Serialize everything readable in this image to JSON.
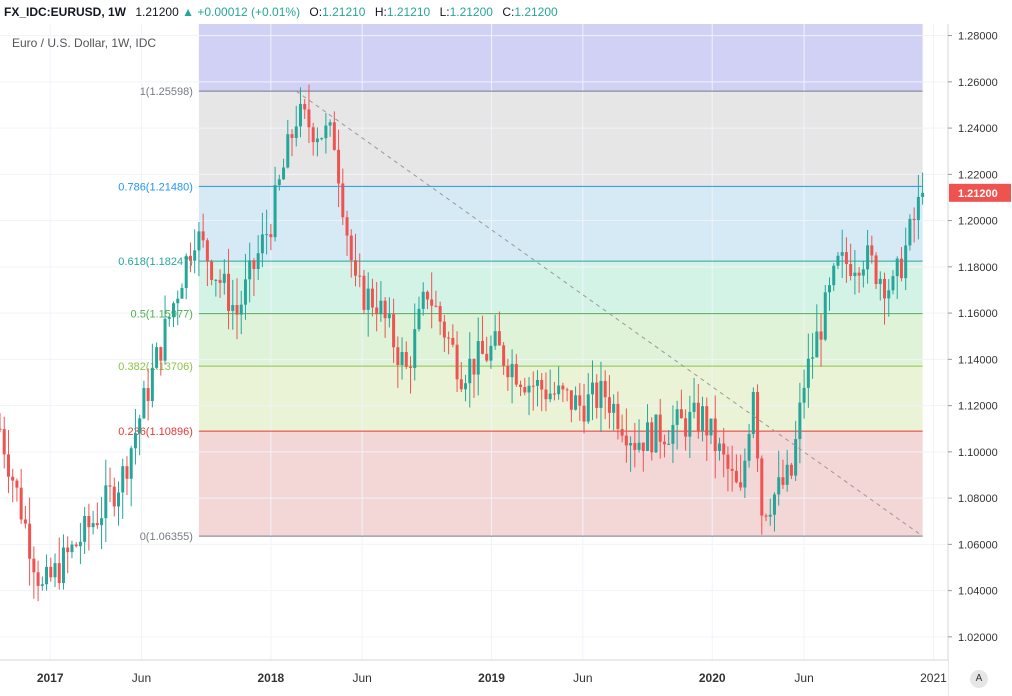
{
  "header": {
    "symbol": "FX_IDC:EURUSD, 1W",
    "last": "1.21200",
    "change_arrow": "▲",
    "change": "+0.00012 (+0.01%)",
    "o_label": "O:",
    "o_value": "1.21210",
    "h_label": "H:",
    "h_value": "1.21210",
    "l_label": "L:",
    "l_value": "1.21200",
    "c_label": "C:",
    "c_value": "1.21200"
  },
  "subtitle": "Euro / U.S. Dollar, 1W, IDC",
  "auto_button": "A",
  "colors": {
    "up": "#26a69a",
    "down": "#ef5350",
    "price_tag": "#ef5350"
  },
  "chart_data": {
    "type": "candlestick",
    "y_range": [
      1.01,
      1.285
    ],
    "y_ticks": [
      "1.28000",
      "1.26000",
      "1.24000",
      "1.22000",
      "1.20000",
      "1.18000",
      "1.16000",
      "1.14000",
      "1.12000",
      "1.10000",
      "1.08000",
      "1.06000",
      "1.04000",
      "1.02000"
    ],
    "y_tick_values": [
      1.28,
      1.26,
      1.24,
      1.22,
      1.2,
      1.18,
      1.16,
      1.14,
      1.12,
      1.1,
      1.08,
      1.06,
      1.04,
      1.02
    ],
    "x_range": [
      "2016-10-10",
      "2021-01-25"
    ],
    "x_ticks": [
      {
        "label": "2017",
        "date": "2017-01-01",
        "bold": true
      },
      {
        "label": "Jun",
        "date": "2017-06-01",
        "bold": false
      },
      {
        "label": "2018",
        "date": "2018-01-01",
        "bold": true
      },
      {
        "label": "Jun",
        "date": "2018-06-01",
        "bold": false
      },
      {
        "label": "2019",
        "date": "2019-01-01",
        "bold": true
      },
      {
        "label": "Jun",
        "date": "2019-06-01",
        "bold": false
      },
      {
        "label": "2020",
        "date": "2020-01-01",
        "bold": true
      },
      {
        "label": "Jun",
        "date": "2020-06-01",
        "bold": false
      },
      {
        "label": "2021",
        "date": "2021-01-01",
        "bold": false
      }
    ],
    "last_price": "1.21200",
    "last_price_value": 1.212,
    "fib_start_date": "2017-09-04",
    "fib_end_date": "2020-12-14",
    "trend_line": {
      "from_date": "2018-02-12",
      "from_value": 1.25598,
      "to_date": "2020-12-14",
      "to_value": 1.06355
    },
    "fib_levels": [
      {
        "label": "1(1.25598)",
        "value": 1.25598,
        "line": "#787b86"
      },
      {
        "label": "0.786(1.21480)",
        "value": 1.2148,
        "line": "#2196f3"
      },
      {
        "label": "0.618(1.18247)",
        "value": 1.18247,
        "line": "#26a69a"
      },
      {
        "label": "0.5(1.15977)",
        "value": 1.15977,
        "line": "#4caf50"
      },
      {
        "label": "0.382(1.13706)",
        "value": 1.13706,
        "line": "#8bc34a"
      },
      {
        "label": "0.236(1.10896)",
        "value": 1.10896,
        "line": "#e53935"
      },
      {
        "label": "0(1.06355)",
        "value": 1.06355,
        "line": "#787b86"
      }
    ],
    "fib_bands": [
      {
        "from": 1.25598,
        "to": 1.285,
        "color": "#d1d0f5"
      },
      {
        "from": 1.2148,
        "to": 1.25598,
        "color": "#e6e6e6"
      },
      {
        "from": 1.18247,
        "to": 1.2148,
        "color": "#d6eaf5"
      },
      {
        "from": 1.15977,
        "to": 1.18247,
        "color": "#d4f3e7"
      },
      {
        "from": 1.13706,
        "to": 1.15977,
        "color": "#dff3d8"
      },
      {
        "from": 1.10896,
        "to": 1.13706,
        "color": "#ebf3d6"
      },
      {
        "from": 1.06355,
        "to": 1.10896,
        "color": "#f3d6d6"
      }
    ],
    "anchors": [
      [
        "2016-10-10",
        1.11
      ],
      [
        "2016-12-19",
        1.04
      ],
      [
        "2017-01-02",
        1.045
      ],
      [
        "2017-03-27",
        1.075
      ],
      [
        "2017-05-01",
        1.09
      ],
      [
        "2017-06-26",
        1.14
      ],
      [
        "2017-08-28",
        1.195
      ],
      [
        "2017-11-06",
        1.16
      ],
      [
        "2018-01-01",
        1.2
      ],
      [
        "2018-02-12",
        1.245
      ],
      [
        "2018-04-16",
        1.235
      ],
      [
        "2018-05-21",
        1.17
      ],
      [
        "2018-06-25",
        1.165
      ],
      [
        "2018-08-13",
        1.135
      ],
      [
        "2018-09-17",
        1.17
      ],
      [
        "2018-11-12",
        1.135
      ],
      [
        "2019-01-07",
        1.145
      ],
      [
        "2019-03-04",
        1.13
      ],
      [
        "2019-05-27",
        1.12
      ],
      [
        "2019-07-08",
        1.125
      ],
      [
        "2019-08-26",
        1.105
      ],
      [
        "2019-10-21",
        1.11
      ],
      [
        "2019-12-16",
        1.115
      ],
      [
        "2020-02-17",
        1.08
      ],
      [
        "2020-03-09",
        1.13
      ],
      [
        "2020-03-23",
        1.075
      ],
      [
        "2020-05-11",
        1.09
      ],
      [
        "2020-06-01",
        1.13
      ],
      [
        "2020-07-27",
        1.18
      ],
      [
        "2020-09-07",
        1.185
      ],
      [
        "2020-10-26",
        1.17
      ],
      [
        "2020-11-30",
        1.2
      ],
      [
        "2020-12-14",
        1.212
      ]
    ]
  }
}
